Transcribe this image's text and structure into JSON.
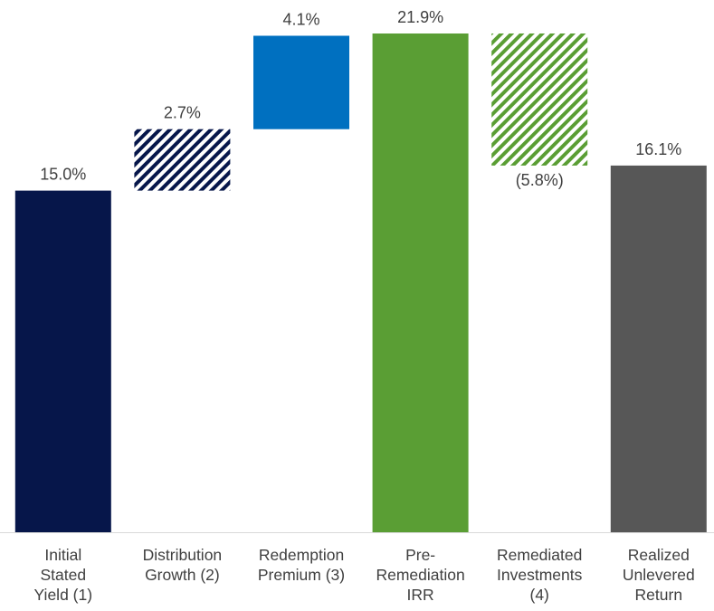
{
  "chart_data": {
    "type": "bar",
    "subtype": "waterfall",
    "categories": [
      [
        "Initial",
        "Stated",
        "Yield (1)"
      ],
      [
        "Distribution",
        "Growth (2)"
      ],
      [
        "Redemption",
        "Premium (3)"
      ],
      [
        "Pre-",
        "Remediation",
        "IRR"
      ],
      [
        "Remediated",
        "Investments",
        "(4)"
      ],
      [
        "Realized",
        "Unlevered",
        "Return"
      ]
    ],
    "values": [
      15.0,
      2.7,
      4.1,
      21.9,
      -5.8,
      16.1
    ],
    "bar_kind": [
      "total",
      "increment",
      "increment",
      "total",
      "decrement",
      "total"
    ],
    "value_labels": [
      "15.0%",
      "2.7%",
      "4.1%",
      "21.9%",
      "(5.8%)",
      "16.1%"
    ],
    "label_position": [
      "above",
      "above",
      "above",
      "above",
      "below",
      "above"
    ],
    "fills": [
      "solid",
      "hatched",
      "solid",
      "solid",
      "hatched",
      "solid"
    ],
    "colors": [
      "#06164a",
      "#06164a",
      "#0070c0",
      "#5a9e34",
      "#5a9e34",
      "#575757"
    ],
    "ylim": [
      0,
      21.9
    ],
    "grid": false,
    "legend": "none",
    "title": "",
    "xlabel": "",
    "ylabel": "",
    "label_color": "#404040",
    "baseline_color": "#d9d9d9"
  }
}
